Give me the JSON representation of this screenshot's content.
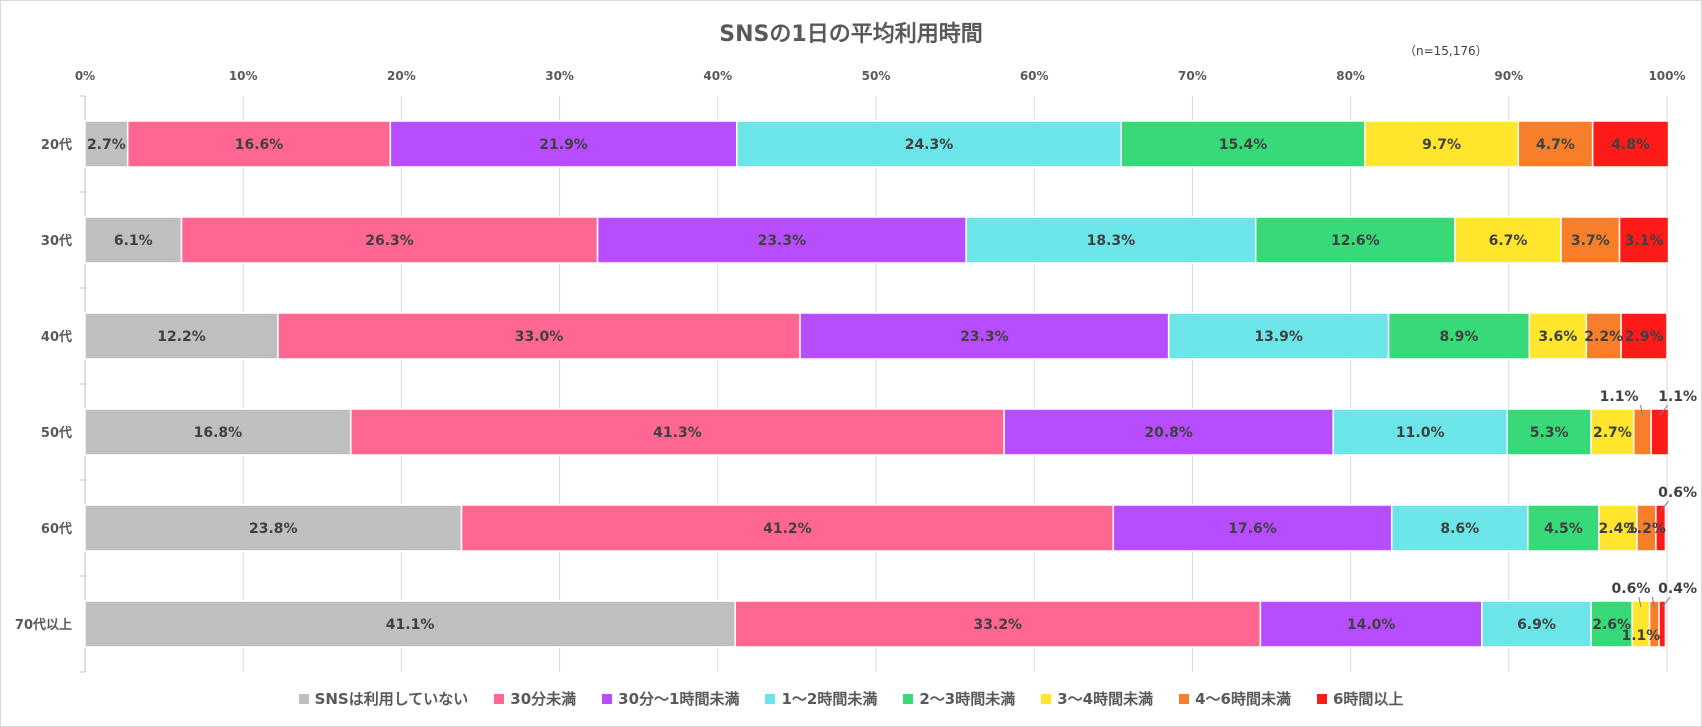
{
  "chart_data": {
    "type": "bar",
    "orientation": "horizontal-stacked-100",
    "title": "SNSの1日の平均利用時間",
    "note": "（n=15,176）",
    "categories": [
      "20代",
      "30代",
      "40代",
      "50代",
      "60代",
      "70代以上"
    ],
    "x_ticks": [
      "0%",
      "10%",
      "20%",
      "30%",
      "40%",
      "50%",
      "60%",
      "70%",
      "80%",
      "90%",
      "100%"
    ],
    "xlim": [
      0,
      100
    ],
    "grid": true,
    "legend_position": "bottom",
    "series": [
      {
        "name": "SNSは利用していない",
        "color": "#bfbfbf",
        "values": [
          2.7,
          6.1,
          12.2,
          16.8,
          23.8,
          41.1
        ],
        "labels": [
          "2.7%",
          "6.1%",
          "12.2%",
          "16.8%",
          "23.8%",
          "41.1%"
        ]
      },
      {
        "name": "30分未満",
        "color": "#ff6692",
        "values": [
          16.6,
          26.3,
          33.0,
          41.3,
          41.2,
          33.2
        ],
        "labels": [
          "16.6%",
          "26.3%",
          "33.0%",
          "41.3%",
          "41.2%",
          "33.2%"
        ]
      },
      {
        "name": "30分～1時間未満",
        "color": "#b84dff",
        "values": [
          21.9,
          23.3,
          23.3,
          20.8,
          17.6,
          14.0
        ],
        "labels": [
          "21.9%",
          "23.3%",
          "23.3%",
          "20.8%",
          "17.6%",
          "14.0%"
        ]
      },
      {
        "name": "1～2時間未満",
        "color": "#6be5e8",
        "values": [
          24.3,
          18.3,
          13.9,
          11.0,
          8.6,
          6.9
        ],
        "labels": [
          "24.3%",
          "18.3%",
          "13.9%",
          "11.0%",
          "8.6%",
          "6.9%"
        ]
      },
      {
        "name": "2～3時間未満",
        "color": "#38d979",
        "values": [
          15.4,
          12.6,
          8.9,
          5.3,
          4.5,
          2.6
        ],
        "labels": [
          "15.4%",
          "12.6%",
          "8.9%",
          "5.3%",
          "4.5%",
          "2.6%"
        ]
      },
      {
        "name": "3～4時間未満",
        "color": "#ffe52b",
        "values": [
          9.7,
          6.7,
          3.6,
          2.7,
          2.4,
          1.1
        ],
        "labels": [
          "9.7%",
          "6.7%",
          "3.6%",
          "2.7%",
          "2.4%",
          "1.1%"
        ]
      },
      {
        "name": "4～6時間未満",
        "color": "#f77f2a",
        "values": [
          4.7,
          3.7,
          2.2,
          1.1,
          1.2,
          0.6
        ],
        "labels": [
          "4.7%",
          "3.7%",
          "2.2%",
          "1.1%",
          "1.2%",
          "0.6%"
        ]
      },
      {
        "name": "6時間以上",
        "color": "#ff1a1a",
        "values": [
          4.8,
          3.1,
          2.9,
          1.1,
          0.6,
          0.4
        ],
        "labels": [
          "4.8%",
          "3.1%",
          "2.9%",
          "1.1%",
          "0.6%",
          "0.4%"
        ]
      }
    ]
  }
}
